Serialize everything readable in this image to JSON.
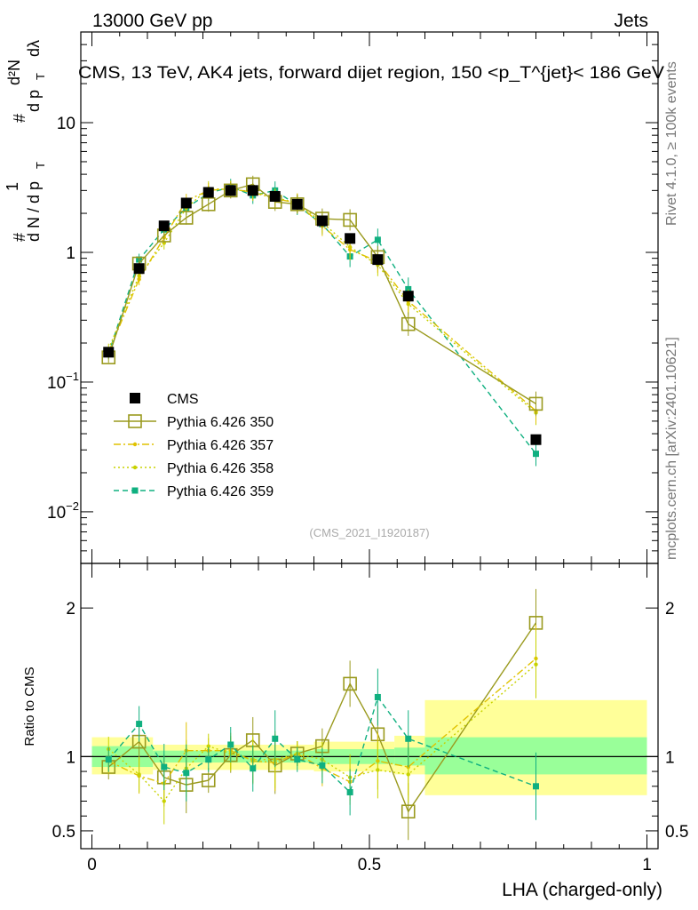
{
  "header": {
    "left": "13000 GeV pp",
    "right": "Jets",
    "side_top": "Rivet 4.1.0, ≥ 100k events",
    "side_bottom": "mcplots.cern.ch [arXiv:2401.10621]"
  },
  "colors": {
    "cms": "#000000",
    "p350": "#9a9a1e",
    "p357": "#e0c200",
    "p358": "#c8d200",
    "p359": "#10b080",
    "band_green": "#99ff99",
    "band_yellow": "#ffff99"
  },
  "chart_data": [
    {
      "type": "scatter",
      "panel": "main",
      "title": "CMS, 13 TeV, AK4 jets, forward dijet region, 150 <p_T^{jet}< 186 GeV",
      "watermark": "(CMS_2021_I1920187)",
      "ylabel": "1/(dN/dp_T) d²N/(dp_T dλ)",
      "ylabel_parts": {
        "n1": "1",
        "den": "d N / d p",
        "sub": "T",
        "num": "d²N",
        "den2": "d p",
        "sub2": "T",
        "dl": "dλ",
        "hash": "#"
      },
      "yscale": "log",
      "ylim": [
        0.004,
        50
      ],
      "xlim": [
        -0.02,
        1.02
      ],
      "y_ticks": [
        {
          "v": 0.01,
          "b": "10",
          "e": "−2"
        },
        {
          "v": 0.1,
          "b": "10",
          "e": "−1"
        },
        {
          "v": 1,
          "b": "1",
          "e": ""
        },
        {
          "v": 10,
          "b": "10",
          "e": ""
        }
      ],
      "x": [
        0.03,
        0.085,
        0.13,
        0.17,
        0.21,
        0.25,
        0.29,
        0.33,
        0.37,
        0.415,
        0.465,
        0.515,
        0.57,
        0.8
      ],
      "series": [
        {
          "name": "CMS",
          "key": "cms",
          "marker": "square-filled",
          "line": "none",
          "values": [
            0.17,
            0.75,
            1.6,
            2.4,
            2.9,
            3.0,
            3.0,
            2.7,
            2.35,
            1.75,
            1.28,
            0.88,
            0.46,
            0.036
          ]
        },
        {
          "name": "Pythia 6.426 350",
          "key": "p350",
          "marker": "square-open",
          "line": "solid",
          "values": [
            0.155,
            0.82,
            1.35,
            1.85,
            2.35,
            3.0,
            3.35,
            2.45,
            2.35,
            1.82,
            1.78,
            0.92,
            0.28,
            0.068
          ]
        },
        {
          "name": "Pythia 6.426 357",
          "key": "p357",
          "marker": "dot",
          "line": "dashdot",
          "values": [
            0.17,
            0.62,
            1.3,
            2.5,
            3.0,
            3.1,
            2.9,
            2.6,
            2.4,
            1.6,
            1.05,
            0.85,
            0.42,
            0.06
          ]
        },
        {
          "name": "Pythia 6.426 358",
          "key": "p358",
          "marker": "dot",
          "line": "dotted",
          "values": [
            0.18,
            0.66,
            1.18,
            2.2,
            3.1,
            3.05,
            2.95,
            2.65,
            2.4,
            1.7,
            1.1,
            0.8,
            0.4,
            0.058
          ]
        },
        {
          "name": "Pythia 6.426 359",
          "key": "p359",
          "marker": "square-small",
          "line": "dashed",
          "values": [
            0.165,
            0.88,
            1.5,
            2.2,
            2.85,
            3.2,
            2.75,
            3.0,
            2.3,
            1.65,
            0.93,
            1.25,
            0.52,
            0.028
          ]
        }
      ],
      "legend": {
        "position": "bottom-left"
      }
    },
    {
      "type": "scatter",
      "panel": "ratio",
      "ylabel": "Ratio to CMS",
      "xlabel": "LHA (charged-only)",
      "ylim": [
        0.38,
        2.3
      ],
      "xlim": [
        -0.02,
        1.02
      ],
      "y_ticks": [
        {
          "v": 0.5,
          "label": "0.5"
        },
        {
          "v": 1,
          "label": "1"
        },
        {
          "v": 2,
          "label": "2"
        }
      ],
      "x_ticks": [
        {
          "v": 0,
          "label": "0"
        },
        {
          "v": 0.5,
          "label": "0.5"
        },
        {
          "v": 1,
          "label": "1"
        }
      ],
      "bands": [
        {
          "x0": 0.0,
          "x1": 0.11,
          "g": [
            0.93,
            1.07
          ],
          "y": [
            0.88,
            1.13
          ]
        },
        {
          "x0": 0.11,
          "x1": 0.4,
          "g": [
            0.96,
            1.04
          ],
          "y": [
            0.91,
            1.08
          ]
        },
        {
          "x0": 0.4,
          "x1": 0.545,
          "g": [
            0.95,
            1.05
          ],
          "y": [
            0.9,
            1.1
          ]
        },
        {
          "x0": 0.545,
          "x1": 0.6,
          "g": [
            0.94,
            1.06
          ],
          "y": [
            0.88,
            1.14
          ]
        },
        {
          "x0": 0.6,
          "x1": 1.0,
          "g": [
            0.88,
            1.13
          ],
          "y": [
            0.74,
            1.38
          ]
        }
      ],
      "series": [
        {
          "key": "p350",
          "values": [
            0.93,
            1.1,
            0.86,
            0.81,
            0.84,
            1.01,
            1.11,
            0.94,
            1.02,
            1.07,
            1.49,
            1.15,
            0.63,
            1.9
          ]
        },
        {
          "key": "p357",
          "values": [
            0.97,
            0.87,
            0.82,
            1.04,
            1.04,
            1.04,
            0.97,
            0.96,
            1.02,
            0.92,
            0.83,
            0.97,
            0.93,
            1.66
          ]
        },
        {
          "key": "p358",
          "values": [
            1.05,
            0.88,
            0.7,
            0.92,
            1.07,
            1.02,
            0.98,
            0.98,
            1.02,
            0.98,
            0.86,
            0.91,
            0.88,
            1.62
          ]
        },
        {
          "key": "p359",
          "values": [
            0.98,
            1.22,
            0.93,
            0.89,
            0.98,
            1.08,
            0.92,
            1.12,
            0.98,
            0.94,
            0.76,
            1.4,
            1.12,
            0.8
          ]
        }
      ]
    }
  ]
}
